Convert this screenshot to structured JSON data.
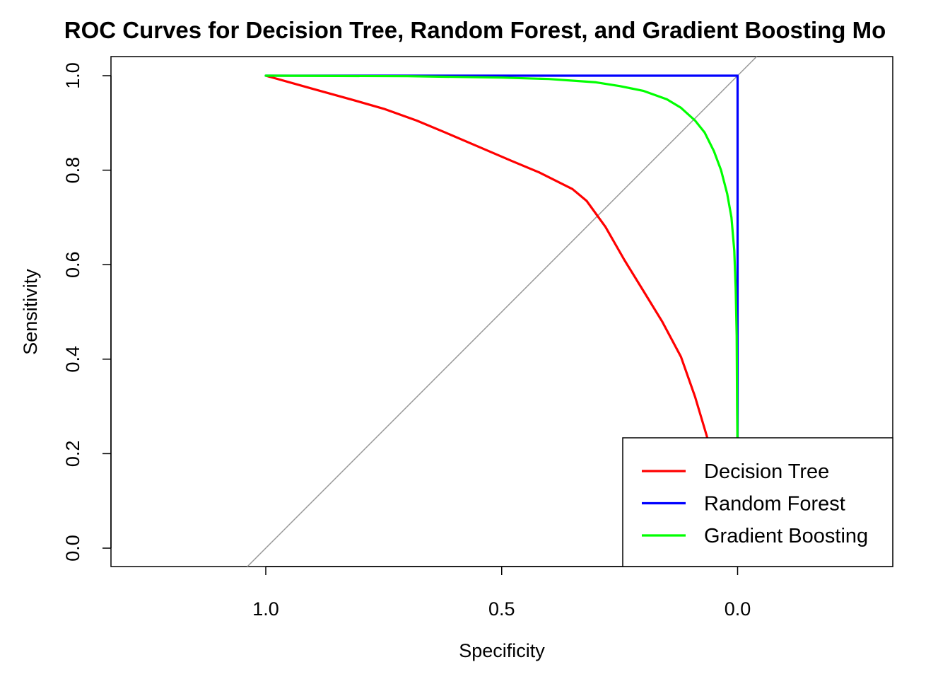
{
  "chart_data": {
    "type": "line",
    "title": "ROC Curves for Decision Tree, Random Forest, and Gradient Boosting Mo",
    "xlabel": "Specificity",
    "ylabel": "Sensitivity",
    "x_reversed": true,
    "xlim": [
      1.33,
      -0.33
    ],
    "ylim": [
      0.0,
      1.0
    ],
    "x_ticks": [
      1.0,
      0.5,
      0.0
    ],
    "x_tick_labels": [
      "1.0",
      "0.5",
      "0.0"
    ],
    "y_ticks": [
      0.0,
      0.2,
      0.4,
      0.6,
      0.8,
      1.0
    ],
    "y_tick_labels": [
      "0.0",
      "0.2",
      "0.4",
      "0.6",
      "0.8",
      "1.0"
    ],
    "reference_line": {
      "color": "#999999",
      "from": [
        1.0,
        0.0
      ],
      "to": [
        0.0,
        1.0
      ]
    },
    "legend_position": "bottom-right",
    "series": [
      {
        "name": "Decision Tree",
        "color": "#ff0000",
        "points": [
          [
            1.0,
            1.0
          ],
          [
            0.9,
            0.972
          ],
          [
            0.82,
            0.95
          ],
          [
            0.75,
            0.93
          ],
          [
            0.68,
            0.905
          ],
          [
            0.62,
            0.88
          ],
          [
            0.55,
            0.85
          ],
          [
            0.48,
            0.82
          ],
          [
            0.42,
            0.795
          ],
          [
            0.38,
            0.775
          ],
          [
            0.35,
            0.76
          ],
          [
            0.32,
            0.735
          ],
          [
            0.28,
            0.68
          ],
          [
            0.24,
            0.61
          ],
          [
            0.2,
            0.545
          ],
          [
            0.16,
            0.48
          ],
          [
            0.12,
            0.405
          ],
          [
            0.09,
            0.32
          ],
          [
            0.066,
            0.24
          ],
          [
            0.055,
            0.2
          ],
          [
            0.045,
            0.16
          ],
          [
            0.03,
            0.1
          ],
          [
            0.015,
            0.05
          ],
          [
            0.0,
            0.0
          ]
        ]
      },
      {
        "name": "Random Forest",
        "color": "#0000ff",
        "points": [
          [
            1.0,
            1.0
          ],
          [
            0.5,
            1.0
          ],
          [
            0.0,
            1.0
          ],
          [
            0.0,
            0.8
          ],
          [
            0.0,
            0.6
          ],
          [
            0.0,
            0.0
          ]
        ]
      },
      {
        "name": "Gradient Boosting",
        "color": "#00ff00",
        "points": [
          [
            1.0,
            1.0
          ],
          [
            0.7,
            0.999
          ],
          [
            0.5,
            0.996
          ],
          [
            0.4,
            0.993
          ],
          [
            0.3,
            0.986
          ],
          [
            0.25,
            0.978
          ],
          [
            0.2,
            0.968
          ],
          [
            0.15,
            0.95
          ],
          [
            0.12,
            0.932
          ],
          [
            0.09,
            0.905
          ],
          [
            0.07,
            0.88
          ],
          [
            0.05,
            0.84
          ],
          [
            0.035,
            0.8
          ],
          [
            0.022,
            0.75
          ],
          [
            0.013,
            0.7
          ],
          [
            0.007,
            0.63
          ],
          [
            0.004,
            0.55
          ],
          [
            0.002,
            0.45
          ],
          [
            0.001,
            0.3
          ],
          [
            0.0,
            0.2
          ],
          [
            0.0,
            0.0
          ]
        ]
      }
    ]
  }
}
